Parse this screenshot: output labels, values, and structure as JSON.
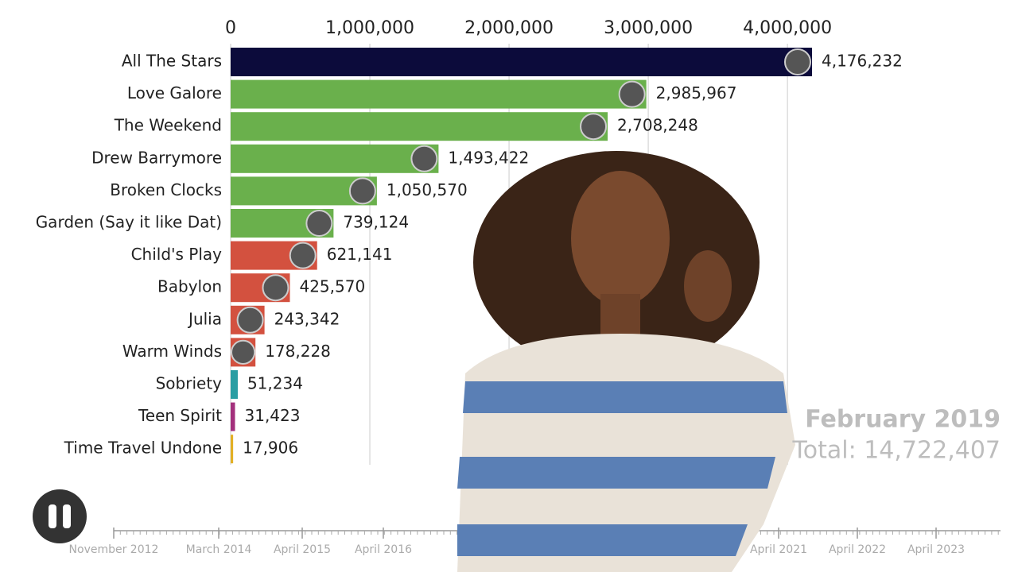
{
  "chart_data": {
    "type": "bar",
    "orientation": "horizontal",
    "categories": [
      "All The Stars",
      "Love Galore",
      "The Weekend",
      "Drew Barrymore",
      "Broken Clocks",
      "Garden (Say it like Dat)",
      "Child's Play",
      "Babylon",
      "Julia",
      "Warm Winds",
      "Sobriety",
      "Teen Spirit",
      "Time Travel Undone"
    ],
    "values": [
      4176232,
      2985967,
      2708248,
      1493422,
      1050570,
      739124,
      621141,
      425570,
      243342,
      178228,
      51234,
      31423,
      17906
    ],
    "value_labels": [
      "4,176,232",
      "2,985,967",
      "2,708,248",
      "1,493,422",
      "1,050,570",
      "739,124",
      "621,141",
      "425,570",
      "243,342",
      "178,228",
      "51,234",
      "31,423",
      "17,906"
    ],
    "colors": [
      "#0c0b3b",
      "#6ab04c",
      "#6ab04c",
      "#6ab04c",
      "#6ab04c",
      "#6ab04c",
      "#d3513f",
      "#d3513f",
      "#d3513f",
      "#d3513f",
      "#2b9ea3",
      "#a3307c",
      "#e2b024"
    ],
    "xlim": [
      0,
      4176232
    ],
    "xticks": [
      0,
      {
        "value": 1000000,
        "label": "1,000,000"
      },
      {
        "value": 2000000,
        "label": "2,000,000"
      },
      {
        "value": 3000000,
        "label": "3,000,000"
      },
      {
        "value": 4000000,
        "label": "4,000,000"
      }
    ],
    "grid": true,
    "period": "February 2019",
    "total_label": "Total: 14,722,407",
    "timeline": [
      "November 2012",
      "March 2014",
      "April 2015",
      "April 2016",
      "April 2021",
      "April 2022",
      "April 2023"
    ]
  }
}
